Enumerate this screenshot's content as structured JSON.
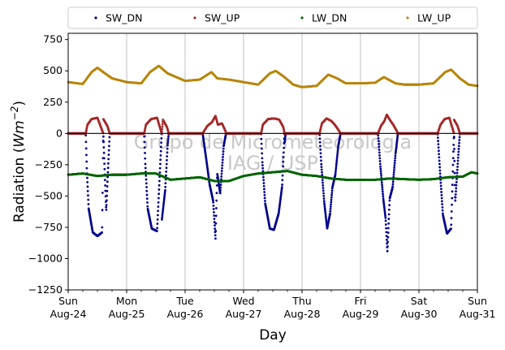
{
  "chart_data": {
    "type": "scatter",
    "title": "",
    "xlabel": "Day",
    "ylabel": "Radiation (Wm^-2)",
    "ylabel_prefix": "Radiation (",
    "ylabel_unit": "Wm",
    "ylabel_exp": "−2",
    "ylabel_suffix": ")",
    "ylim": [
      -1250,
      800
    ],
    "xlim": [
      0,
      7
    ],
    "y_ticks": [
      750,
      500,
      250,
      0,
      -250,
      -500,
      -750,
      -1000,
      -1250
    ],
    "y_tick_labels": [
      "750",
      "500",
      "250",
      "0",
      "−250",
      "−500",
      "−750",
      "−1000",
      "−1250"
    ],
    "x_ticks": [
      0,
      1,
      2,
      3,
      4,
      5,
      6,
      7
    ],
    "x_tick_labels": [
      {
        "day": "Sun",
        "date": "Aug-24"
      },
      {
        "day": "Mon",
        "date": "Aug-25"
      },
      {
        "day": "Tue",
        "date": "Aug-26"
      },
      {
        "day": "Wed",
        "date": "Aug-27"
      },
      {
        "day": "Thu",
        "date": "Aug-28"
      },
      {
        "day": "Fri",
        "date": "Aug-29"
      },
      {
        "day": "Sat",
        "date": "Aug-30"
      },
      {
        "day": "Sun",
        "date": "Aug-31"
      }
    ],
    "grid": "vertical",
    "zero_line": true,
    "legend_position": "top-center",
    "watermark_line1": "Grupo de Micrometeorologia",
    "watermark_line2": "IAG / USP",
    "series": [
      {
        "name": "SW_DN",
        "color": "#00008b",
        "points": [
          [
            0,
            0
          ],
          [
            0.3,
            0
          ],
          [
            0.6,
            0
          ],
          [
            1,
            0
          ],
          [
            1.3,
            0
          ],
          [
            1.6,
            0
          ],
          [
            2,
            0
          ],
          [
            2.3,
            0
          ],
          [
            2.7,
            0
          ],
          [
            3,
            0
          ],
          [
            3.3,
            0
          ],
          [
            3.7,
            0
          ],
          [
            4,
            0
          ],
          [
            4.3,
            0
          ],
          [
            4.7,
            0
          ],
          [
            5,
            0
          ],
          [
            5.3,
            0
          ],
          [
            5.7,
            0
          ],
          [
            6,
            0
          ],
          [
            6.3,
            0
          ],
          [
            6.6,
            0
          ],
          [
            7,
            0
          ],
          [
            0.29,
            0
          ],
          [
            0.32,
            -300
          ],
          [
            0.35,
            -600
          ],
          [
            0.42,
            -790
          ],
          [
            0.5,
            -820
          ],
          [
            0.58,
            -790
          ],
          [
            0.65,
            -620
          ],
          [
            0.68,
            -300
          ],
          [
            0.71,
            0
          ],
          [
            1.29,
            0
          ],
          [
            1.32,
            -250
          ],
          [
            1.36,
            -600
          ],
          [
            1.43,
            -760
          ],
          [
            1.52,
            -780
          ],
          [
            1.6,
            -700
          ],
          [
            1.66,
            -450
          ],
          [
            1.7,
            -100
          ],
          [
            1.72,
            0
          ],
          [
            2.3,
            0
          ],
          [
            2.36,
            -200
          ],
          [
            2.42,
            -410
          ],
          [
            2.48,
            -540
          ],
          [
            2.52,
            -840
          ],
          [
            2.55,
            -320
          ],
          [
            2.6,
            -480
          ],
          [
            2.66,
            -100
          ],
          [
            2.7,
            0
          ],
          [
            3.28,
            0
          ],
          [
            3.32,
            -220
          ],
          [
            3.37,
            -560
          ],
          [
            3.45,
            -760
          ],
          [
            3.52,
            -770
          ],
          [
            3.6,
            -640
          ],
          [
            3.66,
            -420
          ],
          [
            3.7,
            -80
          ],
          [
            3.72,
            0
          ],
          [
            4.28,
            0
          ],
          [
            4.33,
            -250
          ],
          [
            4.38,
            -550
          ],
          [
            4.43,
            -760
          ],
          [
            4.48,
            -640
          ],
          [
            4.52,
            -430
          ],
          [
            4.57,
            -330
          ],
          [
            4.62,
            -100
          ],
          [
            4.66,
            0
          ],
          [
            5.3,
            0
          ],
          [
            5.34,
            -260
          ],
          [
            5.39,
            -520
          ],
          [
            5.43,
            -680
          ],
          [
            5.46,
            -940
          ],
          [
            5.5,
            -520
          ],
          [
            5.55,
            -430
          ],
          [
            5.6,
            -160
          ],
          [
            5.64,
            0
          ],
          [
            6.32,
            0
          ],
          [
            6.36,
            -300
          ],
          [
            6.41,
            -650
          ],
          [
            6.48,
            -800
          ],
          [
            6.55,
            -760
          ],
          [
            6.62,
            -550
          ],
          [
            6.67,
            -200
          ],
          [
            6.7,
            0
          ]
        ]
      },
      {
        "name": "SW_UP",
        "color": "#a52a2a",
        "points": [
          [
            0,
            0
          ],
          [
            0.3,
            0
          ],
          [
            0.6,
            0
          ],
          [
            1,
            0
          ],
          [
            1.3,
            0
          ],
          [
            1.6,
            0
          ],
          [
            2,
            0
          ],
          [
            2.3,
            0
          ],
          [
            2.7,
            0
          ],
          [
            3,
            0
          ],
          [
            3.3,
            0
          ],
          [
            3.7,
            0
          ],
          [
            4,
            0
          ],
          [
            4.3,
            0
          ],
          [
            4.7,
            0
          ],
          [
            5,
            0
          ],
          [
            5.3,
            0
          ],
          [
            5.7,
            0
          ],
          [
            6,
            0
          ],
          [
            6.3,
            0
          ],
          [
            6.6,
            0
          ],
          [
            7,
            0
          ],
          [
            0.29,
            0
          ],
          [
            0.33,
            70
          ],
          [
            0.4,
            115
          ],
          [
            0.5,
            125
          ],
          [
            0.6,
            115
          ],
          [
            0.67,
            60
          ],
          [
            0.71,
            0
          ],
          [
            1.29,
            0
          ],
          [
            1.33,
            70
          ],
          [
            1.42,
            115
          ],
          [
            1.52,
            125
          ],
          [
            1.62,
            110
          ],
          [
            1.69,
            50
          ],
          [
            1.72,
            0
          ],
          [
            2.3,
            0
          ],
          [
            2.38,
            60
          ],
          [
            2.46,
            90
          ],
          [
            2.52,
            140
          ],
          [
            2.56,
            70
          ],
          [
            2.63,
            80
          ],
          [
            2.69,
            20
          ],
          [
            2.7,
            0
          ],
          [
            3.28,
            0
          ],
          [
            3.33,
            70
          ],
          [
            3.42,
            115
          ],
          [
            3.52,
            120
          ],
          [
            3.61,
            110
          ],
          [
            3.68,
            50
          ],
          [
            3.72,
            0
          ],
          [
            4.28,
            0
          ],
          [
            4.34,
            80
          ],
          [
            4.42,
            120
          ],
          [
            4.5,
            100
          ],
          [
            4.56,
            70
          ],
          [
            4.62,
            30
          ],
          [
            4.66,
            0
          ],
          [
            5.3,
            0
          ],
          [
            5.35,
            60
          ],
          [
            5.41,
            100
          ],
          [
            5.45,
            150
          ],
          [
            5.5,
            110
          ],
          [
            5.56,
            70
          ],
          [
            5.62,
            20
          ],
          [
            5.64,
            0
          ],
          [
            6.32,
            0
          ],
          [
            6.37,
            70
          ],
          [
            6.44,
            115
          ],
          [
            6.52,
            125
          ],
          [
            6.6,
            110
          ],
          [
            6.66,
            60
          ],
          [
            6.7,
            0
          ]
        ]
      },
      {
        "name": "LW_DN",
        "color": "#006400",
        "points": [
          [
            0,
            -330
          ],
          [
            0.25,
            -320
          ],
          [
            0.5,
            -340
          ],
          [
            0.75,
            -330
          ],
          [
            1,
            -330
          ],
          [
            1.25,
            -320
          ],
          [
            1.5,
            -320
          ],
          [
            1.75,
            -370
          ],
          [
            2,
            -360
          ],
          [
            2.25,
            -350
          ],
          [
            2.5,
            -380
          ],
          [
            2.75,
            -380
          ],
          [
            3,
            -340
          ],
          [
            3.25,
            -320
          ],
          [
            3.5,
            -310
          ],
          [
            3.75,
            -300
          ],
          [
            4,
            -330
          ],
          [
            4.25,
            -340
          ],
          [
            4.5,
            -360
          ],
          [
            4.75,
            -370
          ],
          [
            5,
            -370
          ],
          [
            5.25,
            -370
          ],
          [
            5.5,
            -360
          ],
          [
            5.75,
            -365
          ],
          [
            6,
            -370
          ],
          [
            6.25,
            -365
          ],
          [
            6.5,
            -350
          ],
          [
            6.75,
            -345
          ],
          [
            6.9,
            -310
          ],
          [
            7,
            -320
          ]
        ]
      },
      {
        "name": "LW_UP",
        "color": "#b8860b",
        "points": [
          [
            0,
            410
          ],
          [
            0.25,
            395
          ],
          [
            0.4,
            490
          ],
          [
            0.5,
            525
          ],
          [
            0.6,
            490
          ],
          [
            0.75,
            440
          ],
          [
            1,
            410
          ],
          [
            1.25,
            400
          ],
          [
            1.4,
            490
          ],
          [
            1.55,
            540
          ],
          [
            1.7,
            480
          ],
          [
            1.9,
            440
          ],
          [
            2,
            420
          ],
          [
            2.25,
            430
          ],
          [
            2.45,
            490
          ],
          [
            2.55,
            440
          ],
          [
            2.75,
            430
          ],
          [
            3,
            410
          ],
          [
            3.25,
            390
          ],
          [
            3.45,
            480
          ],
          [
            3.55,
            500
          ],
          [
            3.7,
            450
          ],
          [
            3.85,
            390
          ],
          [
            4,
            370
          ],
          [
            4.25,
            380
          ],
          [
            4.45,
            470
          ],
          [
            4.6,
            440
          ],
          [
            4.75,
            400
          ],
          [
            5,
            400
          ],
          [
            5.25,
            405
          ],
          [
            5.4,
            450
          ],
          [
            5.6,
            400
          ],
          [
            5.75,
            390
          ],
          [
            6,
            390
          ],
          [
            6.25,
            400
          ],
          [
            6.45,
            490
          ],
          [
            6.55,
            510
          ],
          [
            6.7,
            440
          ],
          [
            6.85,
            390
          ],
          [
            7,
            380
          ]
        ]
      }
    ]
  }
}
